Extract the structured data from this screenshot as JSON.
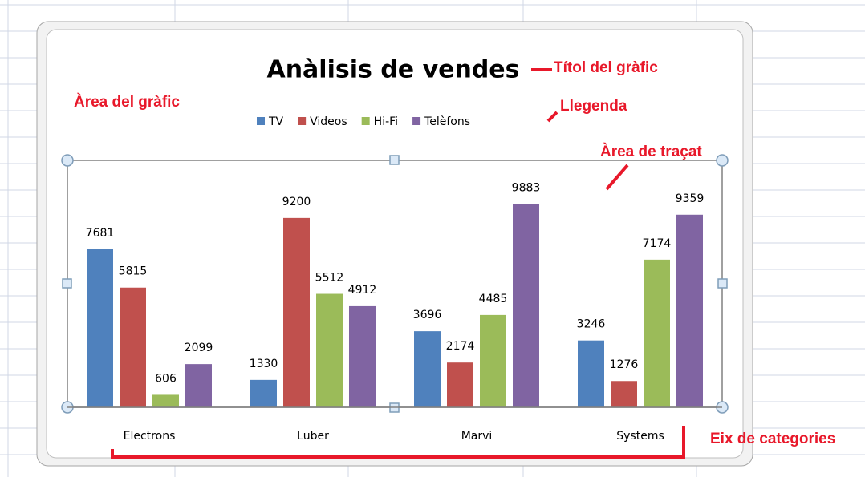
{
  "chart_data": {
    "type": "bar",
    "title": "Anàlisis de vendes",
    "categories": [
      "Electrons",
      "Luber",
      "Marvi",
      "Systems"
    ],
    "series": [
      {
        "name": "TV",
        "color": "#4f81bd",
        "values": [
          7681,
          1330,
          3696,
          3246
        ]
      },
      {
        "name": "Videos",
        "color": "#c0504d",
        "values": [
          5815,
          9200,
          2174,
          1276
        ]
      },
      {
        "name": "Hi-Fi",
        "color": "#9bbb59",
        "values": [
          606,
          5512,
          4485,
          7174
        ]
      },
      {
        "name": "Telèfons",
        "color": "#8064a2",
        "values": [
          2099,
          4912,
          9883,
          9359
        ]
      }
    ],
    "ylim": [
      0,
      12000
    ],
    "legend": "top",
    "data_labels": true
  },
  "annotations": [
    "Títol del gràfic",
    "Àrea del gràfic",
    "Llegenda",
    "Àrea de traçat",
    "Eix de categories"
  ]
}
